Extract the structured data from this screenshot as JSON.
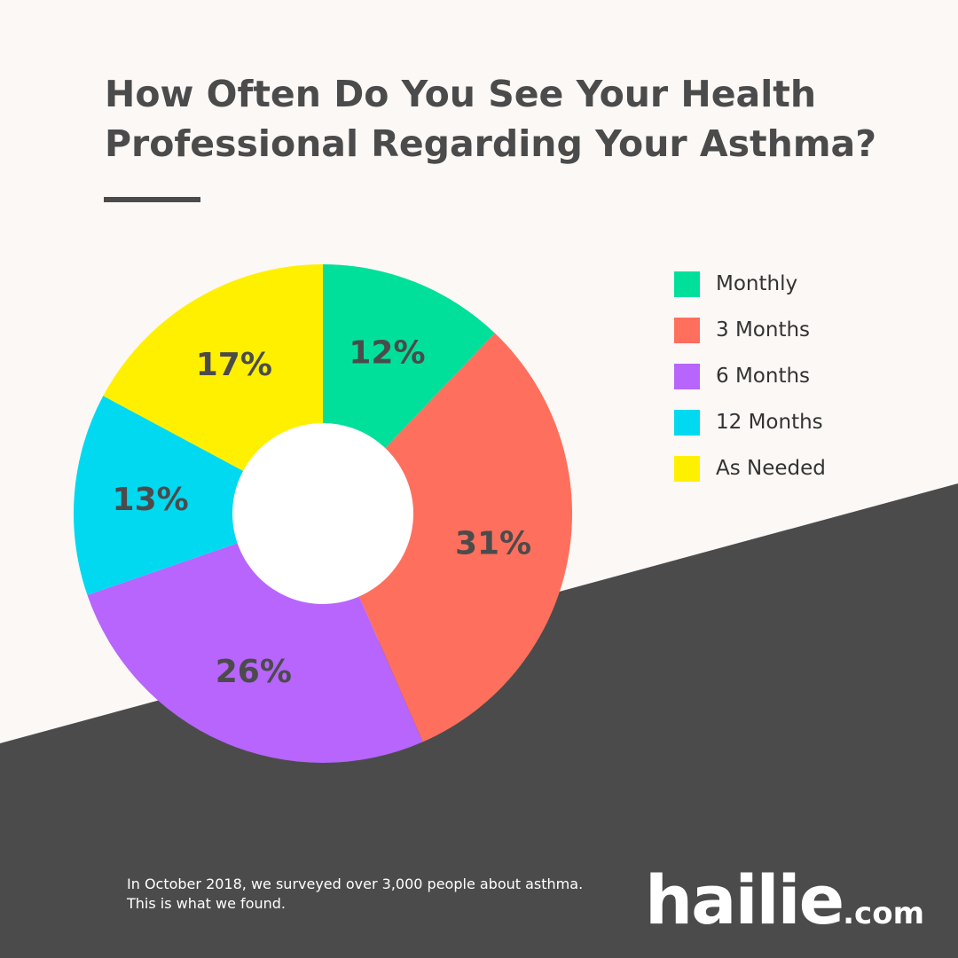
{
  "colors": {
    "background": "#fbf8f5",
    "dark_band": "#4b4b4b",
    "text_dark": "#4b4b4b",
    "center_hole": "#ffffff"
  },
  "title": {
    "line1": "How Often Do You See Your Health",
    "line2": "Professional Regarding Your Asthma?"
  },
  "chart_data": {
    "type": "pie",
    "donut": true,
    "slices": [
      {
        "label": "Monthly",
        "value": 12,
        "display": "12%",
        "color": "#00e09b"
      },
      {
        "label": "3 Months",
        "value": 31,
        "display": "31%",
        "color": "#ff6f5d"
      },
      {
        "label": "6 Months",
        "value": 26,
        "display": "26%",
        "color": "#b765fc"
      },
      {
        "label": "12 Months",
        "value": 13,
        "display": "13%",
        "color": "#00d9f0"
      },
      {
        "label": "As Needed",
        "value": 17,
        "display": "17%",
        "color": "#fff000"
      }
    ],
    "legend_placement": "right"
  },
  "legend": {
    "items": [
      {
        "label": "Monthly",
        "color": "#00e09b"
      },
      {
        "label": "3 Months",
        "color": "#ff6f5d"
      },
      {
        "label": "6 Months",
        "color": "#b765fc"
      },
      {
        "label": "12 Months",
        "color": "#00d9f0"
      },
      {
        "label": "As Needed",
        "color": "#fff000"
      }
    ]
  },
  "footnote": {
    "line1": "In October 2018, we surveyed over 3,000 people about asthma.",
    "line2": "This is what we found."
  },
  "logo": {
    "name": "hailie",
    "tld": ".com"
  }
}
